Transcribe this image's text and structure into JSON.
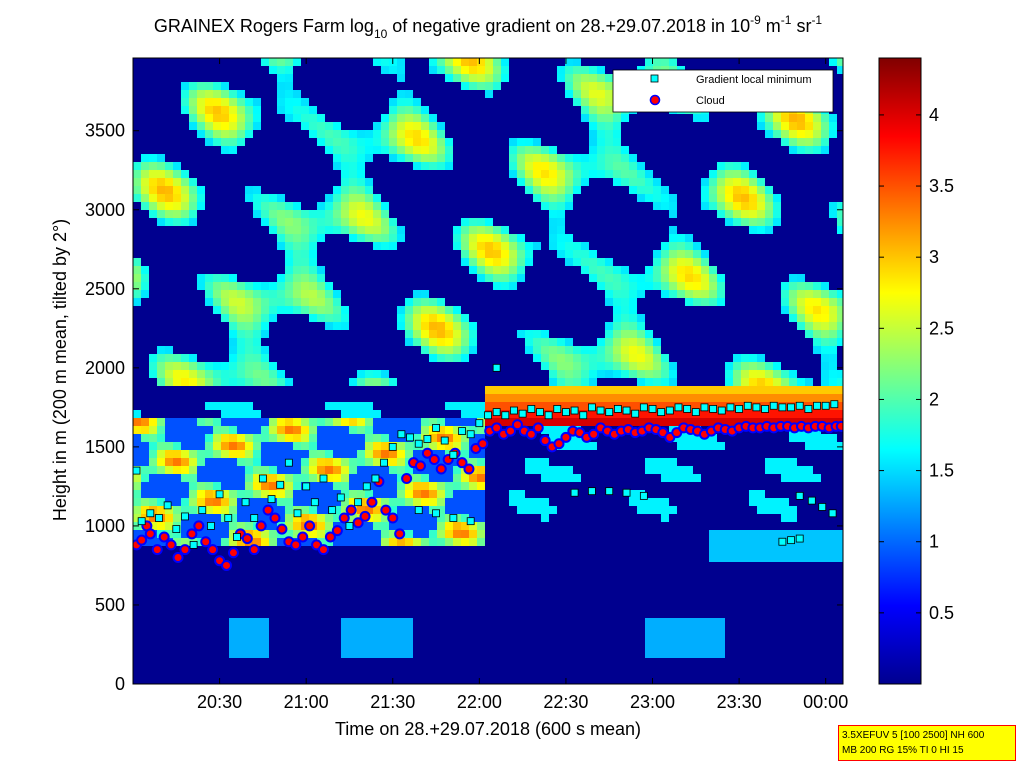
{
  "chart_data": {
    "type": "heatmap",
    "title": {
      "part1": "GRAINEX Rogers Farm log",
      "sub": "10",
      "part2": " of negative gradient on 28.+29.07.2018 in 10",
      "sup1": "-9",
      "part3": " m",
      "sup2": "-1",
      "part4": " sr",
      "sup3": "-1"
    },
    "xlabel": "Time on 28.+29.07.2018 (600 s mean)",
    "ylabel": "Height in m (200 m mean, tilted by 2°)",
    "xlim_hours": [
      20.0,
      24.1
    ],
    "ylim": [
      0,
      3960
    ],
    "x_ticks": [
      {
        "value": 20.5,
        "label": "20:30"
      },
      {
        "value": 21.0,
        "label": "21:00"
      },
      {
        "value": 21.5,
        "label": "21:30"
      },
      {
        "value": 22.0,
        "label": "22:00"
      },
      {
        "value": 22.5,
        "label": "22:30"
      },
      {
        "value": 23.0,
        "label": "23:00"
      },
      {
        "value": 23.5,
        "label": "23:30"
      },
      {
        "value": 24.0,
        "label": "00:00"
      }
    ],
    "y_ticks": [
      {
        "value": 0,
        "label": "0"
      },
      {
        "value": 500,
        "label": "500"
      },
      {
        "value": 1000,
        "label": "1000"
      },
      {
        "value": 1500,
        "label": "1500"
      },
      {
        "value": 2000,
        "label": "2000"
      },
      {
        "value": 2500,
        "label": "2500"
      },
      {
        "value": 3000,
        "label": "3000"
      },
      {
        "value": 3500,
        "label": "3500"
      }
    ],
    "colorbar": {
      "colormap": "jet",
      "range": [
        0,
        4.4
      ],
      "ticks": [
        {
          "value": 0.5,
          "label": "0.5"
        },
        {
          "value": 1.0,
          "label": "1"
        },
        {
          "value": 1.5,
          "label": "1.5"
        },
        {
          "value": 2.0,
          "label": "2"
        },
        {
          "value": 2.5,
          "label": "2.5"
        },
        {
          "value": 3.0,
          "label": "3"
        },
        {
          "value": 3.5,
          "label": "3.5"
        },
        {
          "value": 4.0,
          "label": "4"
        }
      ]
    },
    "legend": {
      "placement": "top-right",
      "entries": [
        {
          "label": "Gradient local minimum",
          "marker": "square",
          "color": "#00ffff",
          "edge": "#000000"
        },
        {
          "label": "Cloud",
          "marker": "circle",
          "color": "#ff0000",
          "edge": "#0000ff"
        }
      ]
    },
    "series": [
      {
        "name": "Gradient local minimum",
        "marker": "square",
        "points": [
          [
            20.02,
            1350
          ],
          [
            20.05,
            1030
          ],
          [
            20.1,
            1080
          ],
          [
            20.15,
            1050
          ],
          [
            20.2,
            1130
          ],
          [
            20.25,
            980
          ],
          [
            20.3,
            1060
          ],
          [
            20.35,
            880
          ],
          [
            20.4,
            1100
          ],
          [
            20.45,
            1000
          ],
          [
            20.5,
            1200
          ],
          [
            20.55,
            1050
          ],
          [
            20.6,
            930
          ],
          [
            20.65,
            1150
          ],
          [
            20.7,
            1050
          ],
          [
            20.75,
            1300
          ],
          [
            20.8,
            1170
          ],
          [
            20.85,
            1260
          ],
          [
            20.9,
            1400
          ],
          [
            20.95,
            1080
          ],
          [
            21.0,
            1250
          ],
          [
            21.05,
            1150
          ],
          [
            21.1,
            1300
          ],
          [
            21.15,
            1100
          ],
          [
            21.2,
            1180
          ],
          [
            21.25,
            1000
          ],
          [
            21.3,
            1150
          ],
          [
            21.35,
            1250
          ],
          [
            21.4,
            1300
          ],
          [
            21.45,
            1400
          ],
          [
            21.5,
            1500
          ],
          [
            21.55,
            1580
          ],
          [
            21.6,
            1560
          ],
          [
            21.65,
            1520
          ],
          [
            21.7,
            1550
          ],
          [
            21.75,
            1620
          ],
          [
            21.8,
            1540
          ],
          [
            21.85,
            1450
          ],
          [
            21.9,
            1600
          ],
          [
            21.95,
            1580
          ],
          [
            22.0,
            1650
          ],
          [
            22.05,
            1700
          ],
          [
            22.1,
            1720
          ],
          [
            22.15,
            1700
          ],
          [
            22.2,
            1730
          ],
          [
            22.25,
            1710
          ],
          [
            22.3,
            1740
          ],
          [
            22.35,
            1720
          ],
          [
            22.4,
            1700
          ],
          [
            22.45,
            1740
          ],
          [
            22.5,
            1720
          ],
          [
            22.55,
            1730
          ],
          [
            22.6,
            1700
          ],
          [
            22.65,
            1750
          ],
          [
            22.7,
            1730
          ],
          [
            22.75,
            1720
          ],
          [
            22.8,
            1740
          ],
          [
            22.85,
            1730
          ],
          [
            22.9,
            1710
          ],
          [
            22.95,
            1750
          ],
          [
            23.0,
            1740
          ],
          [
            23.05,
            1720
          ],
          [
            23.1,
            1730
          ],
          [
            23.15,
            1750
          ],
          [
            23.2,
            1740
          ],
          [
            23.25,
            1720
          ],
          [
            23.3,
            1750
          ],
          [
            23.35,
            1740
          ],
          [
            23.4,
            1730
          ],
          [
            23.45,
            1750
          ],
          [
            23.5,
            1740
          ],
          [
            23.55,
            1760
          ],
          [
            23.6,
            1750
          ],
          [
            23.65,
            1740
          ],
          [
            23.7,
            1760
          ],
          [
            23.75,
            1750
          ],
          [
            23.8,
            1750
          ],
          [
            23.85,
            1760
          ],
          [
            23.9,
            1740
          ],
          [
            23.95,
            1760
          ],
          [
            24.0,
            1760
          ],
          [
            24.05,
            1770
          ],
          [
            21.65,
            1100
          ],
          [
            21.75,
            1080
          ],
          [
            21.85,
            1050
          ],
          [
            21.95,
            1030
          ],
          [
            22.55,
            1210
          ],
          [
            22.65,
            1220
          ],
          [
            22.75,
            1220
          ],
          [
            22.85,
            1210
          ],
          [
            22.95,
            1190
          ],
          [
            23.85,
            1190
          ],
          [
            23.92,
            1160
          ],
          [
            23.98,
            1120
          ],
          [
            24.04,
            1080
          ],
          [
            23.75,
            900
          ],
          [
            23.8,
            910
          ],
          [
            23.85,
            920
          ],
          [
            22.1,
            2000
          ]
        ]
      },
      {
        "name": "Cloud",
        "marker": "circle",
        "points": [
          [
            20.02,
            880
          ],
          [
            20.05,
            910
          ],
          [
            20.08,
            1000
          ],
          [
            20.1,
            950
          ],
          [
            20.14,
            850
          ],
          [
            20.18,
            930
          ],
          [
            20.22,
            880
          ],
          [
            20.26,
            800
          ],
          [
            20.3,
            850
          ],
          [
            20.34,
            950
          ],
          [
            20.38,
            1000
          ],
          [
            20.42,
            900
          ],
          [
            20.46,
            850
          ],
          [
            20.5,
            780
          ],
          [
            20.54,
            750
          ],
          [
            20.58,
            830
          ],
          [
            20.62,
            950
          ],
          [
            20.66,
            920
          ],
          [
            20.7,
            850
          ],
          [
            20.74,
            1000
          ],
          [
            20.78,
            1100
          ],
          [
            20.82,
            1050
          ],
          [
            20.86,
            980
          ],
          [
            20.9,
            900
          ],
          [
            20.94,
            880
          ],
          [
            20.98,
            930
          ],
          [
            21.02,
            1000
          ],
          [
            21.06,
            880
          ],
          [
            21.1,
            850
          ],
          [
            21.14,
            930
          ],
          [
            21.18,
            970
          ],
          [
            21.22,
            1050
          ],
          [
            21.26,
            1100
          ],
          [
            21.3,
            1020
          ],
          [
            21.34,
            1060
          ],
          [
            21.38,
            1150
          ],
          [
            21.42,
            1280
          ],
          [
            21.46,
            1100
          ],
          [
            21.5,
            1050
          ],
          [
            21.54,
            950
          ],
          [
            21.58,
            1300
          ],
          [
            21.62,
            1400
          ],
          [
            21.66,
            1380
          ],
          [
            21.7,
            1460
          ],
          [
            21.74,
            1420
          ],
          [
            21.78,
            1360
          ],
          [
            21.82,
            1420
          ],
          [
            21.86,
            1460
          ],
          [
            21.9,
            1400
          ],
          [
            21.94,
            1360
          ],
          [
            21.98,
            1490
          ],
          [
            22.02,
            1520
          ],
          [
            22.06,
            1600
          ],
          [
            22.1,
            1620
          ],
          [
            22.14,
            1580
          ],
          [
            22.18,
            1600
          ],
          [
            22.22,
            1640
          ],
          [
            22.26,
            1600
          ],
          [
            22.3,
            1580
          ],
          [
            22.34,
            1620
          ],
          [
            22.38,
            1540
          ],
          [
            22.42,
            1500
          ],
          [
            22.46,
            1520
          ],
          [
            22.5,
            1560
          ],
          [
            22.54,
            1600
          ],
          [
            22.58,
            1590
          ],
          [
            22.62,
            1560
          ],
          [
            22.66,
            1580
          ],
          [
            22.7,
            1620
          ],
          [
            22.74,
            1600
          ],
          [
            22.78,
            1580
          ],
          [
            22.82,
            1600
          ],
          [
            22.86,
            1610
          ],
          [
            22.9,
            1590
          ],
          [
            22.94,
            1600
          ],
          [
            22.98,
            1620
          ],
          [
            23.02,
            1610
          ],
          [
            23.06,
            1590
          ],
          [
            23.1,
            1560
          ],
          [
            23.14,
            1590
          ],
          [
            23.18,
            1620
          ],
          [
            23.22,
            1610
          ],
          [
            23.26,
            1600
          ],
          [
            23.3,
            1580
          ],
          [
            23.34,
            1600
          ],
          [
            23.38,
            1620
          ],
          [
            23.42,
            1610
          ],
          [
            23.46,
            1600
          ],
          [
            23.5,
            1620
          ],
          [
            23.54,
            1630
          ],
          [
            23.58,
            1620
          ],
          [
            23.62,
            1620
          ],
          [
            23.66,
            1630
          ],
          [
            23.7,
            1620
          ],
          [
            23.74,
            1630
          ],
          [
            23.78,
            1630
          ],
          [
            23.82,
            1620
          ],
          [
            23.86,
            1630
          ],
          [
            23.9,
            1620
          ],
          [
            23.94,
            1630
          ],
          [
            23.98,
            1630
          ],
          [
            24.02,
            1620
          ],
          [
            24.06,
            1630
          ],
          [
            24.09,
            1630
          ]
        ]
      }
    ]
  },
  "info_box": {
    "line1": "3.5XEFUV 5 [100 2500] NH 600",
    "line2": "MB 200 RG 15% TI 0 HI 15"
  }
}
